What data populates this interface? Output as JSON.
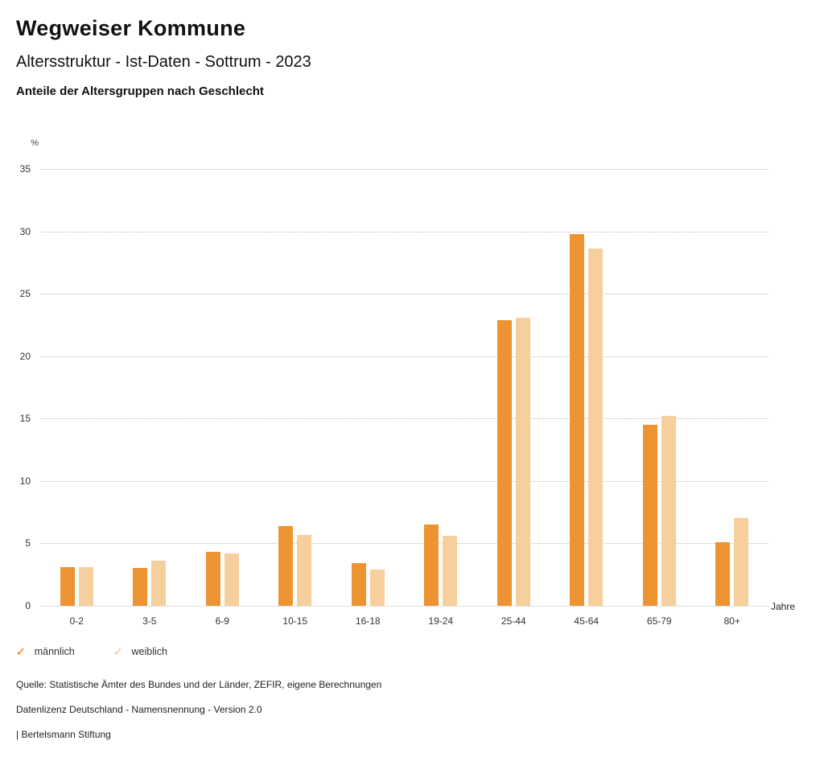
{
  "header": {
    "title": "Wegweiser Kommune",
    "subtitle": "Altersstruktur - Ist-Daten - Sottrum - 2023",
    "chart_heading": "Anteile der Altersgruppen nach Geschlecht"
  },
  "chart_data": {
    "type": "bar",
    "title": "Anteile der Altersgruppen nach Geschlecht",
    "categories": [
      "0-2",
      "3-5",
      "6-9",
      "10-15",
      "16-18",
      "19-24",
      "25-44",
      "45-64",
      "65-79",
      "80+"
    ],
    "series": [
      {
        "name": "männlich",
        "color": "#ED9331",
        "values": [
          3.1,
          3.0,
          4.3,
          6.4,
          3.4,
          6.5,
          22.9,
          29.8,
          14.5,
          5.1
        ]
      },
      {
        "name": "weiblich",
        "color": "#F7CF9D",
        "values": [
          3.1,
          3.6,
          4.2,
          5.7,
          2.9,
          5.6,
          23.1,
          28.6,
          15.2,
          7.0
        ]
      }
    ],
    "ylabel": "%",
    "xlabel": "Jahre",
    "ylim": [
      0,
      35
    ],
    "yticks": [
      0,
      5,
      10,
      15,
      20,
      25,
      30,
      35
    ],
    "grid": true,
    "gridline_color": "#bdbdbd",
    "legend_position": "bottom"
  },
  "legend": {
    "check_glyph": "✓",
    "items": [
      {
        "label": "männlich",
        "color": "#ED9331"
      },
      {
        "label": "weiblich",
        "color": "#F7CF9D"
      }
    ]
  },
  "footer": {
    "source": "Quelle: Statistische Ämter des Bundes und der Länder, ZEFIR, eigene Berechnungen",
    "license": "Datenlizenz Deutschland - Namensnennung - Version 2.0",
    "attribution": "| Bertelsmann Stiftung"
  }
}
